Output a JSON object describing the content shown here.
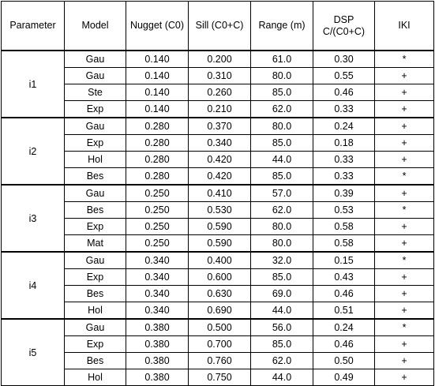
{
  "headers": {
    "parameter": "Parameter",
    "model": "Model",
    "nugget": "Nugget (C0)",
    "sill": "Sill (C0+C)",
    "range": "Range (m)",
    "dsp_line1": "DSP",
    "dsp_line2": "C/(C0+C)",
    "iki": "IKI"
  },
  "groups": [
    {
      "parameter": "i1",
      "rows": [
        {
          "model": "Gau",
          "nugget": "0.140",
          "sill": "0.200",
          "range": "61.0",
          "dsp": "0.30",
          "iki": "*"
        },
        {
          "model": "Gau",
          "nugget": "0.140",
          "sill": "0.310",
          "range": "80.0",
          "dsp": "0.55",
          "iki": "+"
        },
        {
          "model": "Ste",
          "nugget": "0.140",
          "sill": "0.260",
          "range": "85.0",
          "dsp": "0.46",
          "iki": "+"
        },
        {
          "model": "Exp",
          "nugget": "0.140",
          "sill": "0.210",
          "range": "62.0",
          "dsp": "0.33",
          "iki": "+"
        }
      ]
    },
    {
      "parameter": "i2",
      "rows": [
        {
          "model": "Gau",
          "nugget": "0.280",
          "sill": "0.370",
          "range": "80.0",
          "dsp": "0.24",
          "iki": "+"
        },
        {
          "model": "Exp",
          "nugget": "0.280",
          "sill": "0.340",
          "range": "85.0",
          "dsp": "0.18",
          "iki": "+"
        },
        {
          "model": "Hol",
          "nugget": "0.280",
          "sill": "0.420",
          "range": "44.0",
          "dsp": "0.33",
          "iki": "+"
        },
        {
          "model": "Bes",
          "nugget": "0.280",
          "sill": "0.420",
          "range": "85.0",
          "dsp": "0.33",
          "iki": "*"
        }
      ]
    },
    {
      "parameter": "i3",
      "rows": [
        {
          "model": "Gau",
          "nugget": "0.250",
          "sill": "0.410",
          "range": "57.0",
          "dsp": "0.39",
          "iki": "+"
        },
        {
          "model": "Bes",
          "nugget": "0.250",
          "sill": "0.530",
          "range": "62.0",
          "dsp": "0.53",
          "iki": "*"
        },
        {
          "model": "Exp",
          "nugget": "0.250",
          "sill": "0.590",
          "range": "80.0",
          "dsp": "0.58",
          "iki": "+"
        },
        {
          "model": "Mat",
          "nugget": "0.250",
          "sill": "0.590",
          "range": "80.0",
          "dsp": "0.58",
          "iki": "+"
        }
      ]
    },
    {
      "parameter": "i4",
      "rows": [
        {
          "model": "Gau",
          "nugget": "0.340",
          "sill": "0.400",
          "range": "32.0",
          "dsp": "0.15",
          "iki": "*"
        },
        {
          "model": "Exp",
          "nugget": "0.340",
          "sill": "0.600",
          "range": "85.0",
          "dsp": "0.43",
          "iki": "+"
        },
        {
          "model": "Bes",
          "nugget": "0.340",
          "sill": "0.630",
          "range": "69.0",
          "dsp": "0.46",
          "iki": "+"
        },
        {
          "model": "Hol",
          "nugget": "0.340",
          "sill": "0.690",
          "range": "44.0",
          "dsp": "0.51",
          "iki": "+"
        }
      ]
    },
    {
      "parameter": "i5",
      "rows": [
        {
          "model": "Gau",
          "nugget": "0.380",
          "sill": "0.500",
          "range": "56.0",
          "dsp": "0.24",
          "iki": "*"
        },
        {
          "model": "Exp",
          "nugget": "0.380",
          "sill": "0.700",
          "range": "85.0",
          "dsp": "0.46",
          "iki": "+"
        },
        {
          "model": "Bes",
          "nugget": "0.380",
          "sill": "0.760",
          "range": "62.0",
          "dsp": "0.50",
          "iki": "+"
        },
        {
          "model": "Hol",
          "nugget": "0.380",
          "sill": "0.750",
          "range": "44.0",
          "dsp": "0.49",
          "iki": "+"
        }
      ]
    }
  ]
}
